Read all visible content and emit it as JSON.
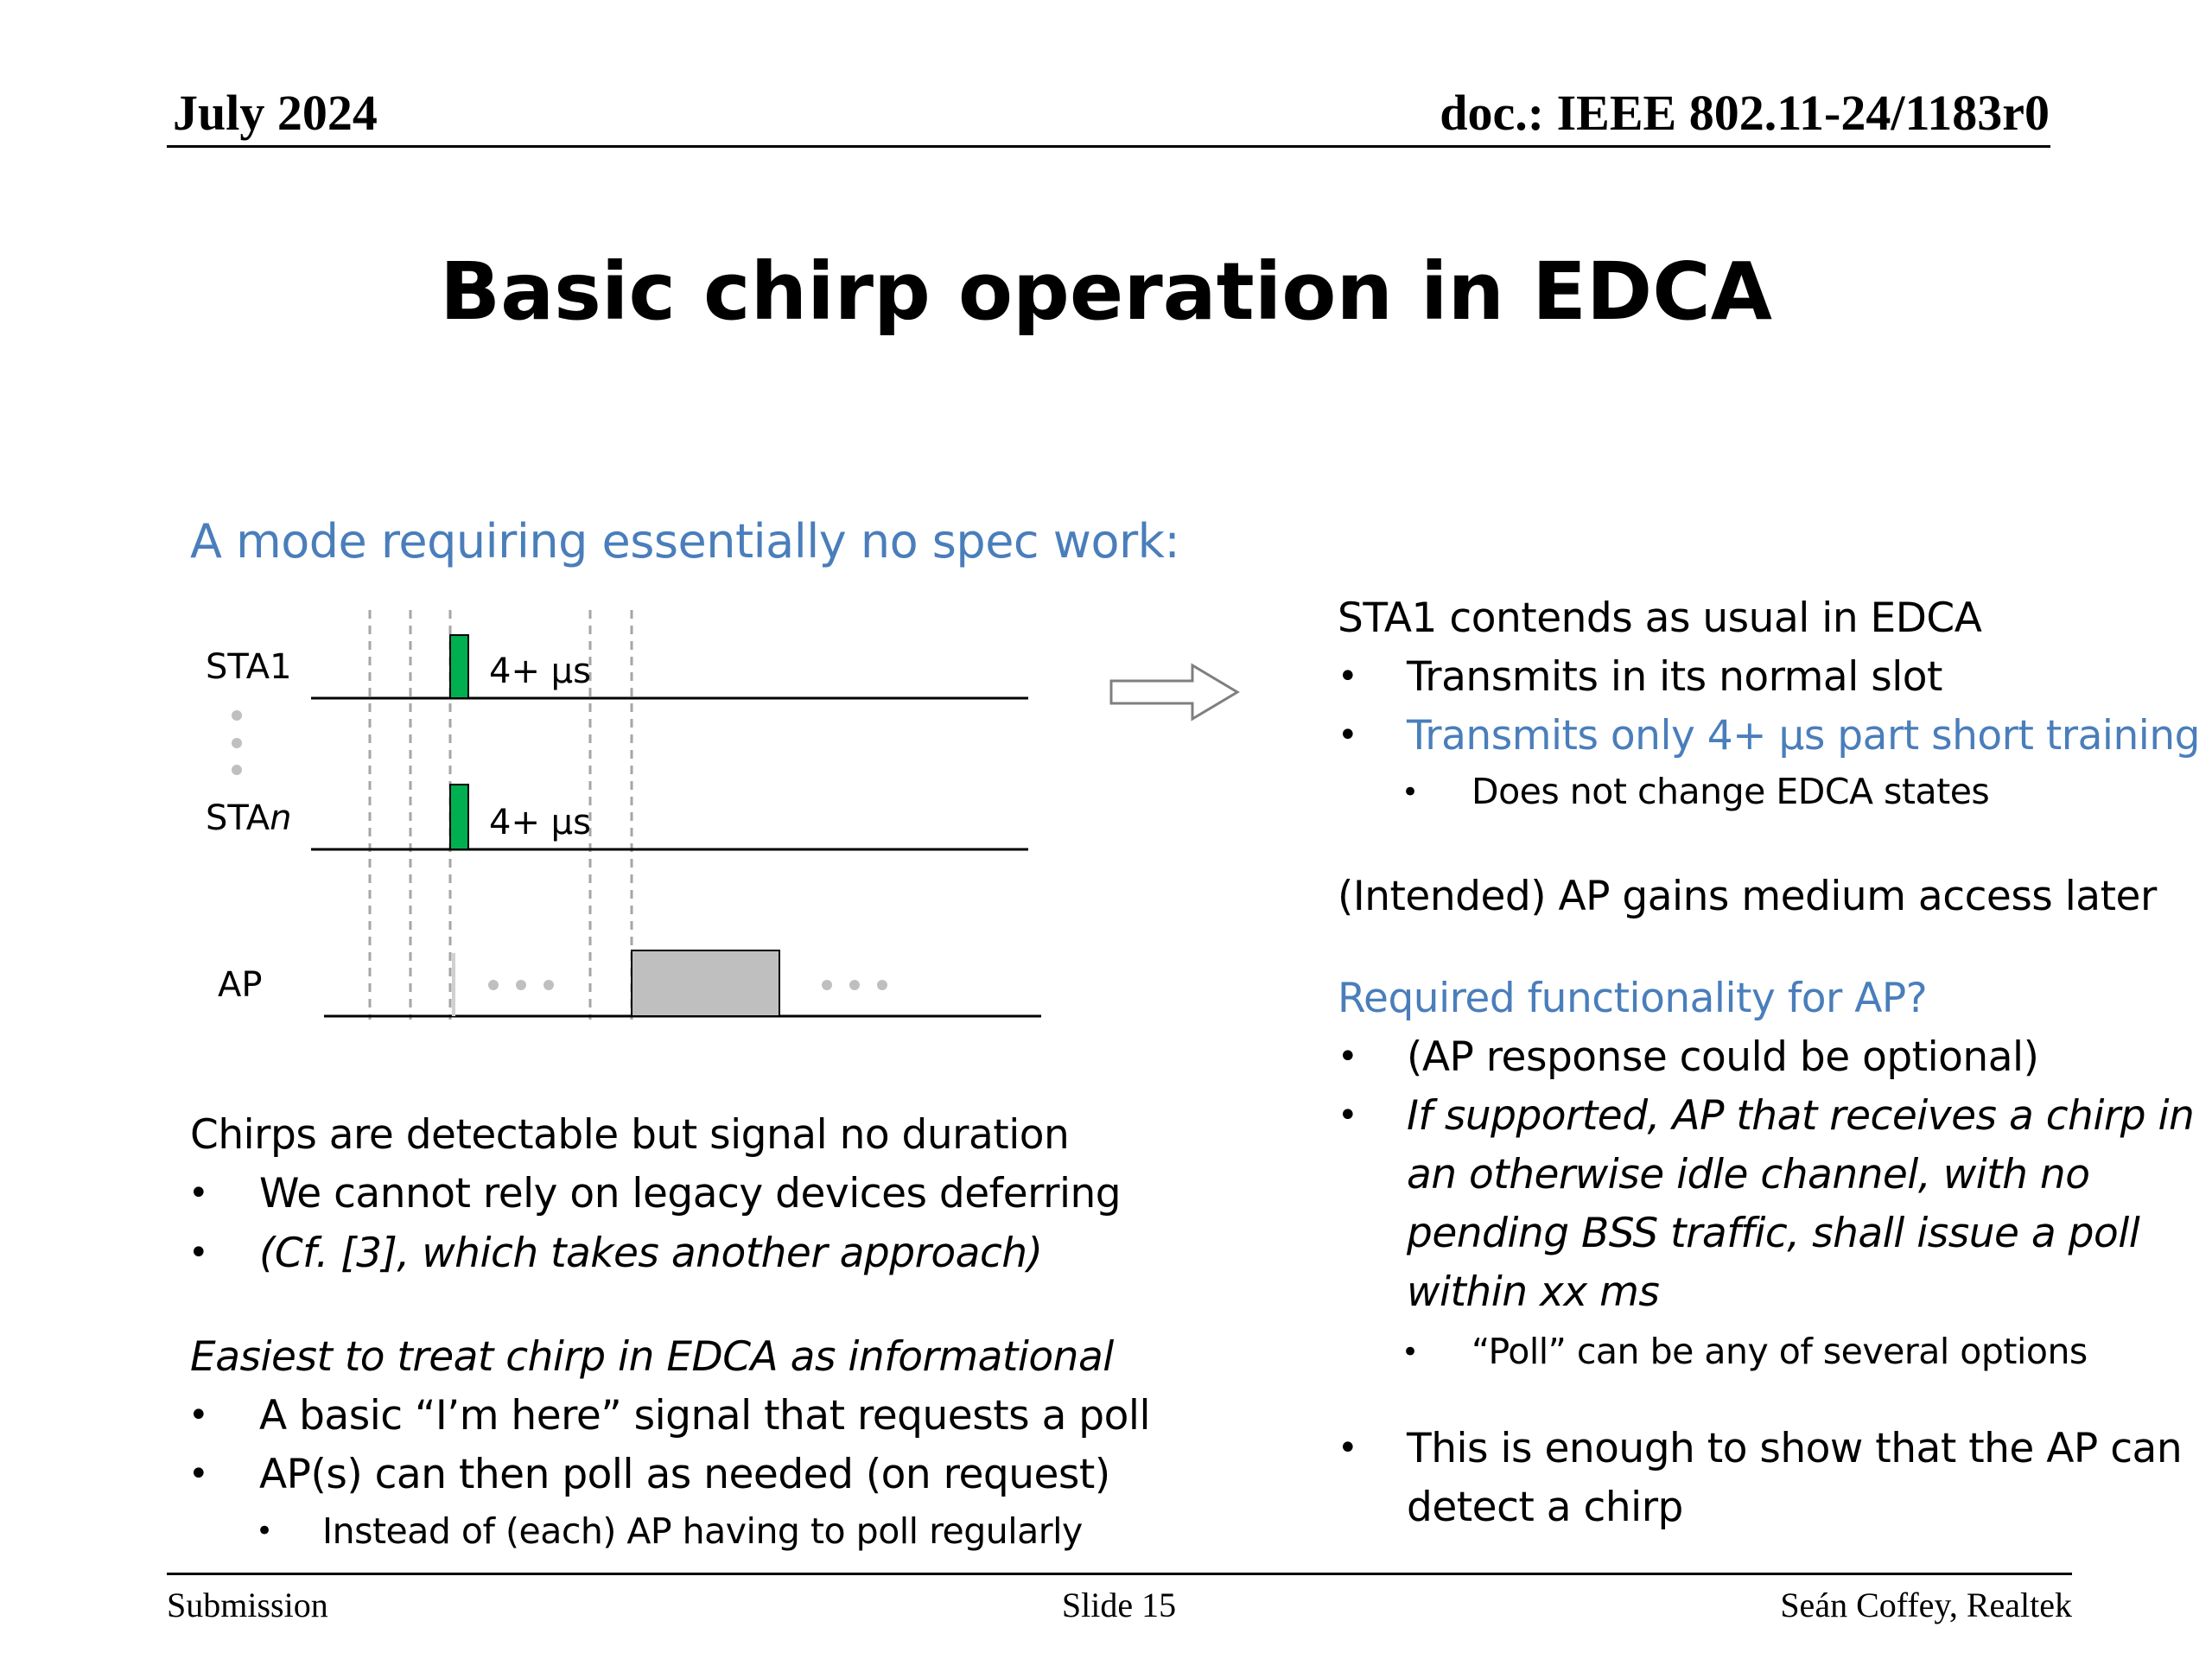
{
  "header": {
    "date": "July 2024",
    "doc": "doc.: IEEE 802.11-24/1183r0"
  },
  "title": "Basic chirp operation in EDCA",
  "left": {
    "subtitle": "A mode requiring essentially no spec work:",
    "diagram": {
      "sta1_label": "STA1",
      "stan_label_prefix": "STA",
      "stan_label_suffix": "n",
      "ap_label": "AP",
      "chirp_label_1": "4+ µs",
      "chirp_label_2": "4+ µs",
      "chirp_color": "#00b050",
      "ap_tx_color": "#bfbfbf"
    },
    "para1": "Chirps are detectable but signal no duration",
    "para1_bullets": [
      "We cannot rely on legacy devices deferring",
      "(Cf. [3], which takes another approach)"
    ],
    "para2": "Easiest to treat chirp in EDCA as informational",
    "para2_bullets": [
      "A basic “I’m here” signal that requests a poll",
      "AP(s) can then poll as needed (on request)"
    ],
    "para2_sub": "Instead of (each) AP having to poll regularly"
  },
  "right": {
    "para1": "STA1 contends as usual in EDCA",
    "bullets1": [
      "Transmits in its normal slot",
      "Transmits only 4+ µs part short training"
    ],
    "sub1": "Does not change EDCA states",
    "para2": "(Intended) AP gains medium access later",
    "heading": "Required functionality for AP?",
    "bullet_a": "(AP response could be optional)",
    "bullet_b_lines": [
      "If supported, AP that receives a chirp in",
      "an otherwise idle channel, with no",
      "pending BSS traffic, shall issue a poll",
      "within xx ms"
    ],
    "sub2": "“Poll” can be any of several options",
    "bullet_c_lines": [
      "This is enough to show that the AP can",
      "detect a chirp"
    ]
  },
  "bullet_char": "•",
  "footer": {
    "left": "Submission",
    "center": "Slide 15",
    "right": "Seán Coffey, Realtek"
  }
}
